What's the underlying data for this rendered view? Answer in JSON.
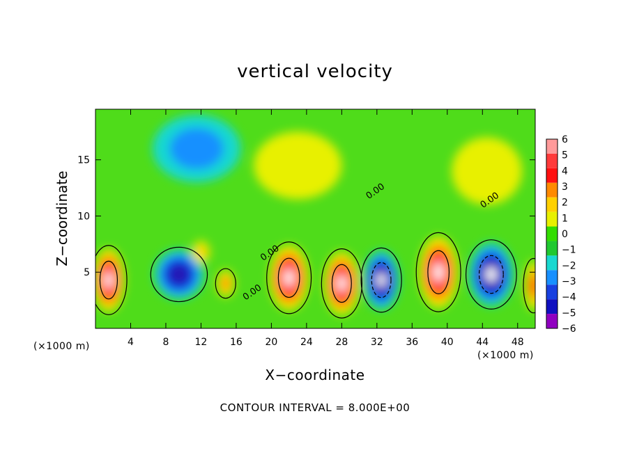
{
  "chart_data": {
    "type": "heatmap",
    "title": "vertical velocity",
    "xlabel": "X−coordinate",
    "ylabel": "Z−coordinate",
    "x_unit_label": "(×1000 m)",
    "x_unit_label_right": "(×1000 m)",
    "footer": "CONTOUR INTERVAL = 8.000E+00",
    "xlim": [
      0,
      50
    ],
    "ylim": [
      0,
      19.5
    ],
    "x_ticks": [
      "4",
      "8",
      "12",
      "16",
      "20",
      "24",
      "28",
      "32",
      "36",
      "40",
      "44",
      "48"
    ],
    "y_ticks": [
      "5",
      "10",
      "15"
    ],
    "colorbar": {
      "labels": [
        "6",
        "5",
        "4",
        "3",
        "2",
        "1",
        "0",
        "−1",
        "−2",
        "−3",
        "−4",
        "−5",
        "−6"
      ],
      "colors": [
        "#ff9a9a",
        "#ff3a3a",
        "#ff1010",
        "#ff8a00",
        "#ffd000",
        "#e8f000",
        "#33dd00",
        "#20c830",
        "#19d8d0",
        "#1890ff",
        "#1840e0",
        "#1010c0",
        "#9000c0"
      ]
    },
    "contour_labels": [
      {
        "text": "0.00",
        "x": 32,
        "y": 12.0
      },
      {
        "text": "0.00",
        "x": 45,
        "y": 11.2
      },
      {
        "text": "0.00",
        "x": 20,
        "y": 6.5
      },
      {
        "text": "0.00",
        "x": 18,
        "y": 3.0
      }
    ],
    "features": [
      {
        "sign": "up",
        "x": 1.5,
        "z": 4.3,
        "amp": 6,
        "sx": 1.8,
        "sz": 2.8
      },
      {
        "sign": "down",
        "x": 9.5,
        "z": 4.8,
        "amp": 5,
        "sx": 2.8,
        "sz": 2.2
      },
      {
        "sign": "up",
        "x": 14.8,
        "z": 4.0,
        "amp": 3,
        "sx": 1.0,
        "sz": 1.2
      },
      {
        "sign": "up",
        "x": 12.0,
        "z": 6.8,
        "amp": 2,
        "sx": 1.0,
        "sz": 1.0
      },
      {
        "sign": "up",
        "x": 22.0,
        "z": 4.5,
        "amp": 6,
        "sx": 2.2,
        "sz": 2.9
      },
      {
        "sign": "up",
        "x": 28.0,
        "z": 4.0,
        "amp": 6,
        "sx": 2.0,
        "sz": 2.8
      },
      {
        "sign": "down",
        "x": 32.5,
        "z": 4.3,
        "amp": 6,
        "sx": 2.0,
        "sz": 2.6
      },
      {
        "sign": "up",
        "x": 39.0,
        "z": 5.0,
        "amp": 6,
        "sx": 2.2,
        "sz": 3.2
      },
      {
        "sign": "down",
        "x": 45.0,
        "z": 4.8,
        "amp": 6,
        "sx": 2.5,
        "sz": 2.8
      },
      {
        "sign": "up",
        "x": 49.8,
        "z": 3.8,
        "amp": 4,
        "sx": 1.0,
        "sz": 2.2
      },
      {
        "sign": "down",
        "x": 11.5,
        "z": 16.0,
        "amp": 2,
        "sx": 5.0,
        "sz": 3.0
      },
      {
        "sign": "up",
        "x": 23.0,
        "z": 14.5,
        "amp": 1,
        "sx": 5.0,
        "sz": 3.0
      },
      {
        "sign": "up",
        "x": 44.5,
        "z": 14.0,
        "amp": 1,
        "sx": 4.0,
        "sz": 3.0
      }
    ]
  }
}
